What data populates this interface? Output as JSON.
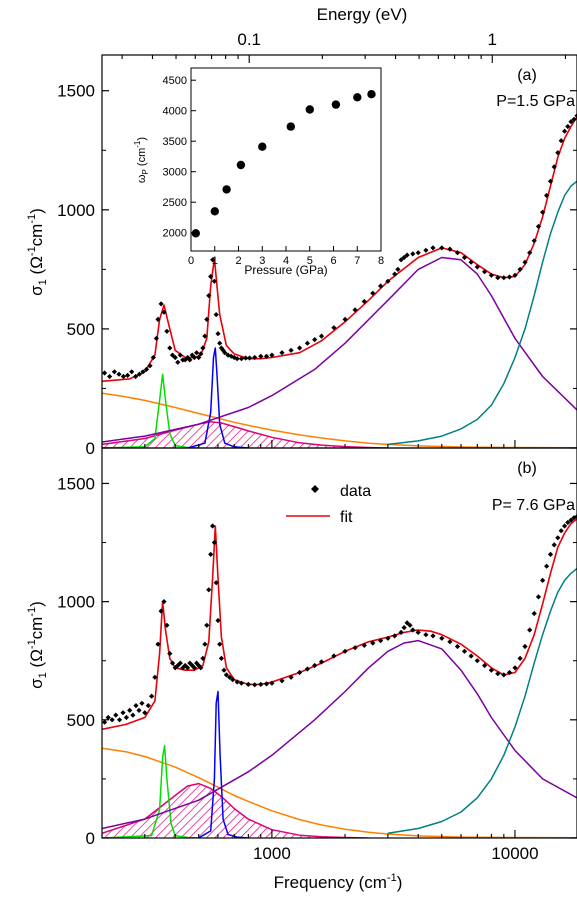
{
  "figure": {
    "top_axis_label": "Energy (eV)",
    "x_axis_label": "Frequency (cm",
    "x_axis_label_sup": "-1",
    "x_axis_label_end": ")",
    "y_axis_label_main": "σ",
    "y_axis_label_sub": "1",
    "y_axis_label_units": "(Ω",
    "y_axis_label_sup1": "-1",
    "y_axis_label_mid": "cm",
    "y_axis_label_sup2": "-1",
    "y_axis_label_end": ")"
  },
  "colors": {
    "data": "#000000",
    "fit": "#e8000a",
    "drude": "#ff8000",
    "phonon1": "#00e000",
    "phonon2": "#0000ff",
    "hatched": "#e0007a",
    "midir": "#7a00a0",
    "interband": "#008080"
  },
  "chart_data": [
    {
      "type": "line",
      "panel_label": "(a)",
      "pressure_label": "P=1.5 GPa",
      "x_scale": "log",
      "xlim": [
        200,
        18000
      ],
      "ylim": [
        0,
        1650
      ],
      "y_ticks": [
        "0",
        "500",
        "1000",
        "1500"
      ],
      "top_ticks": [
        "0.1",
        "1"
      ],
      "series": [
        {
          "key": "fit",
          "style": "fit",
          "x": [
            200,
            260,
            300,
            330,
            345,
            360,
            380,
            400,
            440,
            480,
            510,
            540,
            560,
            580,
            610,
            650,
            700,
            800,
            900,
            1000,
            1300,
            1600,
            2000,
            2500,
            3000,
            4000,
            5000,
            6000,
            7000,
            8000,
            9000,
            10000,
            11000,
            12000,
            13000,
            14000,
            15000,
            16000,
            17000,
            18000
          ],
          "y": [
            280,
            290,
            320,
            390,
            540,
            600,
            500,
            410,
            380,
            380,
            390,
            460,
            680,
            795,
            560,
            430,
            395,
            375,
            375,
            380,
            400,
            450,
            530,
            620,
            700,
            800,
            840,
            820,
            770,
            730,
            715,
            720,
            770,
            860,
            970,
            1100,
            1220,
            1300,
            1350,
            1390
          ]
        },
        {
          "key": "drude",
          "style": "drude",
          "x": [
            200,
            250,
            300,
            400,
            500,
            600,
            700,
            800,
            1000,
            1300,
            1600,
            2000,
            2500,
            3000,
            4000,
            6000,
            9000,
            18000
          ],
          "y": [
            230,
            215,
            200,
            170,
            145,
            125,
            108,
            95,
            75,
            55,
            42,
            30,
            20,
            15,
            9,
            4,
            2,
            1
          ]
        },
        {
          "key": "phonon1",
          "style": "phonon1",
          "x": [
            200,
            300,
            330,
            345,
            355,
            365,
            380,
            400,
            450,
            500
          ],
          "y": [
            0,
            5,
            40,
            200,
            310,
            200,
            60,
            10,
            2,
            0
          ]
        },
        {
          "key": "phonon2",
          "style": "phonon2",
          "x": [
            450,
            530,
            560,
            575,
            585,
            595,
            610,
            640,
            700,
            800
          ],
          "y": [
            0,
            20,
            150,
            380,
            420,
            300,
            100,
            20,
            5,
            0
          ]
        },
        {
          "key": "hatched",
          "style": "hatched",
          "x": [
            200,
            300,
            400,
            500,
            560,
            620,
            700,
            800,
            1000,
            1300,
            1600,
            2000,
            2500,
            3000
          ],
          "y": [
            15,
            40,
            75,
            100,
            110,
            105,
            90,
            72,
            45,
            22,
            12,
            6,
            2,
            0
          ]
        },
        {
          "key": "midir",
          "style": "midir",
          "x": [
            200,
            300,
            500,
            800,
            1000,
            1500,
            2000,
            3000,
            4000,
            5000,
            6000,
            7000,
            8000,
            10000,
            13000,
            18000
          ],
          "y": [
            25,
            50,
            100,
            170,
            220,
            330,
            440,
            620,
            750,
            800,
            790,
            730,
            640,
            460,
            300,
            160
          ]
        },
        {
          "key": "interband",
          "style": "interband",
          "x": [
            3000,
            4000,
            5000,
            6000,
            7000,
            8000,
            9000,
            10000,
            11000,
            12000,
            13000,
            14000,
            15000,
            16000,
            17000,
            18000
          ],
          "y": [
            15,
            30,
            50,
            80,
            120,
            180,
            270,
            380,
            500,
            640,
            780,
            900,
            990,
            1060,
            1100,
            1120
          ]
        }
      ],
      "data_points": {
        "x": [
          205,
          215,
          225,
          235,
          245,
          255,
          265,
          275,
          285,
          295,
          305,
          315,
          325,
          335,
          340,
          350,
          360,
          370,
          380,
          390,
          400,
          410,
          420,
          430,
          440,
          450,
          460,
          470,
          480,
          490,
          500,
          510,
          520,
          530,
          540,
          550,
          560,
          570,
          580,
          590,
          600,
          610,
          620,
          630,
          640,
          660,
          680,
          700,
          720,
          750,
          780,
          810,
          850,
          900,
          950,
          1000,
          1100,
          1200,
          1300,
          1400,
          1500,
          1600,
          1800,
          2000,
          2200,
          2400,
          2600,
          2800,
          3000,
          3200,
          3300,
          3400,
          3500,
          3600,
          3800,
          4000,
          4300,
          4600,
          5000,
          5400,
          5800,
          6200,
          6600,
          7000,
          7500,
          8000,
          8500,
          9000,
          9500,
          10000,
          10500,
          11000,
          11500,
          12000,
          12500,
          13000,
          13500,
          14000,
          14500,
          15000,
          15500,
          16000,
          16500,
          17000,
          17500,
          18000
        ],
        "y": [
          315,
          300,
          320,
          310,
          300,
          305,
          320,
          300,
          310,
          320,
          330,
          345,
          380,
          460,
          540,
          605,
          570,
          490,
          420,
          390,
          380,
          360,
          390,
          370,
          370,
          380,
          370,
          390,
          380,
          400,
          380,
          395,
          420,
          470,
          540,
          640,
          720,
          790,
          700,
          560,
          480,
          440,
          420,
          410,
          400,
          390,
          385,
          380,
          375,
          375,
          378,
          378,
          380,
          385,
          385,
          390,
          400,
          410,
          420,
          440,
          455,
          470,
          505,
          540,
          580,
          615,
          650,
          680,
          700,
          730,
          750,
          790,
          800,
          810,
          815,
          820,
          830,
          840,
          840,
          835,
          820,
          800,
          780,
          760,
          740,
          725,
          715,
          715,
          718,
          725,
          750,
          780,
          820,
          870,
          930,
          990,
          1060,
          1120,
          1180,
          1240,
          1290,
          1330,
          1350,
          1370,
          1380,
          1395
        ]
      },
      "inset": {
        "x_label": "Pressure (GPa)",
        "y_label_main": "ω",
        "y_label_sub": "P",
        "y_label_units": "(cm",
        "y_label_sup": "-1",
        "y_label_end": ")",
        "xlim": [
          0,
          8
        ],
        "ylim": [
          1700,
          4700
        ],
        "x_ticks": [
          "0",
          "1",
          "2",
          "3",
          "4",
          "5",
          "6",
          "7",
          "8"
        ],
        "y_ticks": [
          "2000",
          "2500",
          "3000",
          "3500",
          "4000",
          "4500"
        ],
        "x": [
          0.2,
          1.0,
          1.5,
          2.1,
          3.0,
          4.2,
          5.0,
          6.1,
          7.0,
          7.6
        ],
        "y": [
          1990,
          2350,
          2710,
          3110,
          3410,
          3740,
          4020,
          4100,
          4220,
          4270
        ]
      }
    },
    {
      "type": "line",
      "panel_label": "(b)",
      "pressure_label": "P= 7.6 GPa",
      "x_scale": "log",
      "xlim": [
        200,
        18000
      ],
      "ylim": [
        0,
        1650
      ],
      "y_ticks": [
        "0",
        "500",
        "1000",
        "1500"
      ],
      "x_ticks": [
        "1000",
        "10000"
      ],
      "legend": {
        "data": "data",
        "fit": "fit"
      },
      "series": [
        {
          "key": "fit",
          "style": "fit",
          "x": [
            200,
            250,
            300,
            330,
            345,
            355,
            365,
            380,
            400,
            440,
            480,
            520,
            550,
            570,
            585,
            600,
            620,
            650,
            700,
            800,
            900,
            1000,
            1300,
            1600,
            2000,
            2500,
            3000,
            3500,
            4000,
            4500,
            5000,
            6000,
            7000,
            8000,
            9000,
            10000,
            11000,
            12000,
            13000,
            14000,
            15000,
            16000,
            17000,
            18000
          ],
          "y": [
            460,
            480,
            510,
            580,
            780,
            1000,
            880,
            760,
            720,
            710,
            710,
            730,
            830,
            1100,
            1320,
            1100,
            850,
            720,
            670,
            650,
            650,
            660,
            700,
            740,
            790,
            830,
            850,
            870,
            880,
            875,
            860,
            820,
            770,
            720,
            690,
            700,
            760,
            860,
            990,
            1120,
            1230,
            1290,
            1330,
            1350
          ]
        },
        {
          "key": "drude",
          "style": "drude",
          "x": [
            200,
            250,
            300,
            400,
            500,
            600,
            700,
            800,
            1000,
            1300,
            1600,
            2000,
            2500,
            3000,
            4000,
            6000,
            9000,
            18000
          ],
          "y": [
            380,
            365,
            345,
            300,
            255,
            215,
            180,
            155,
            115,
            78,
            55,
            37,
            24,
            17,
            9,
            4,
            2,
            1
          ]
        },
        {
          "key": "phonon1",
          "style": "phonon1",
          "x": [
            200,
            320,
            345,
            355,
            362,
            370,
            385,
            400,
            450,
            500
          ],
          "y": [
            0,
            10,
            120,
            340,
            390,
            250,
            60,
            10,
            2,
            0
          ]
        },
        {
          "key": "phonon2",
          "style": "phonon2",
          "x": [
            500,
            560,
            580,
            590,
            600,
            612,
            630,
            660,
            720,
            800
          ],
          "y": [
            0,
            30,
            250,
            570,
            620,
            350,
            80,
            15,
            4,
            0
          ]
        },
        {
          "key": "hatched",
          "style": "hatched",
          "x": [
            200,
            300,
            400,
            450,
            500,
            560,
            620,
            700,
            800,
            1000,
            1300,
            1600,
            2000,
            2500
          ],
          "y": [
            20,
            80,
            180,
            220,
            230,
            210,
            175,
            125,
            80,
            35,
            12,
            5,
            2,
            0
          ]
        },
        {
          "key": "midir",
          "style": "midir",
          "x": [
            200,
            300,
            500,
            800,
            1000,
            1500,
            2000,
            2500,
            3000,
            3500,
            4000,
            5000,
            6000,
            7000,
            8000,
            10000,
            13000,
            18000
          ],
          "y": [
            40,
            80,
            160,
            280,
            350,
            500,
            620,
            720,
            790,
            825,
            835,
            800,
            710,
            610,
            510,
            370,
            250,
            170
          ]
        },
        {
          "key": "interband",
          "style": "interband",
          "x": [
            3000,
            4000,
            5000,
            6000,
            7000,
            8000,
            9000,
            10000,
            11000,
            12000,
            13000,
            14000,
            15000,
            16000,
            17000,
            18000
          ],
          "y": [
            20,
            40,
            70,
            110,
            170,
            250,
            350,
            470,
            600,
            740,
            860,
            960,
            1040,
            1090,
            1120,
            1140
          ]
        }
      ],
      "data_points": {
        "x": [
          205,
          212,
          220,
          228,
          236,
          244,
          252,
          260,
          268,
          276,
          284,
          292,
          300,
          310,
          320,
          330,
          340,
          350,
          360,
          370,
          380,
          390,
          400,
          410,
          420,
          430,
          440,
          450,
          460,
          470,
          480,
          490,
          500,
          510,
          520,
          530,
          540,
          550,
          560,
          570,
          580,
          590,
          600,
          610,
          620,
          635,
          650,
          670,
          690,
          720,
          750,
          800,
          850,
          900,
          950,
          1000,
          1100,
          1200,
          1300,
          1400,
          1500,
          1600,
          1800,
          2000,
          2200,
          2400,
          2600,
          2800,
          3000,
          3200,
          3400,
          3500,
          3600,
          3700,
          3800,
          4000,
          4300,
          4600,
          5000,
          5400,
          5800,
          6200,
          6600,
          7000,
          7500,
          8000,
          8500,
          9000,
          9500,
          10000,
          10500,
          11000,
          11500,
          12000,
          12500,
          13000,
          13500,
          14000,
          14500,
          15000,
          15500,
          16000,
          16500,
          17000,
          17500,
          18000
        ],
        "y": [
          490,
          510,
          500,
          520,
          500,
          530,
          510,
          540,
          520,
          560,
          540,
          570,
          530,
          560,
          600,
          680,
          820,
          960,
          1000,
          900,
          780,
          740,
          720,
          730,
          740,
          720,
          730,
          720,
          740,
          730,
          720,
          740,
          730,
          720,
          760,
          820,
          900,
          1050,
          1200,
          1320,
          1250,
          1080,
          920,
          820,
          760,
          710,
          690,
          680,
          670,
          660,
          655,
          650,
          648,
          650,
          652,
          655,
          665,
          680,
          700,
          715,
          730,
          745,
          770,
          790,
          805,
          815,
          825,
          835,
          845,
          855,
          870,
          890,
          910,
          900,
          880,
          870,
          860,
          855,
          845,
          830,
          810,
          790,
          770,
          750,
          730,
          710,
          695,
          690,
          700,
          720,
          760,
          810,
          880,
          950,
          1020,
          1090,
          1150,
          1200,
          1240,
          1270,
          1300,
          1320,
          1335,
          1345,
          1355,
          1360
        ]
      }
    }
  ]
}
